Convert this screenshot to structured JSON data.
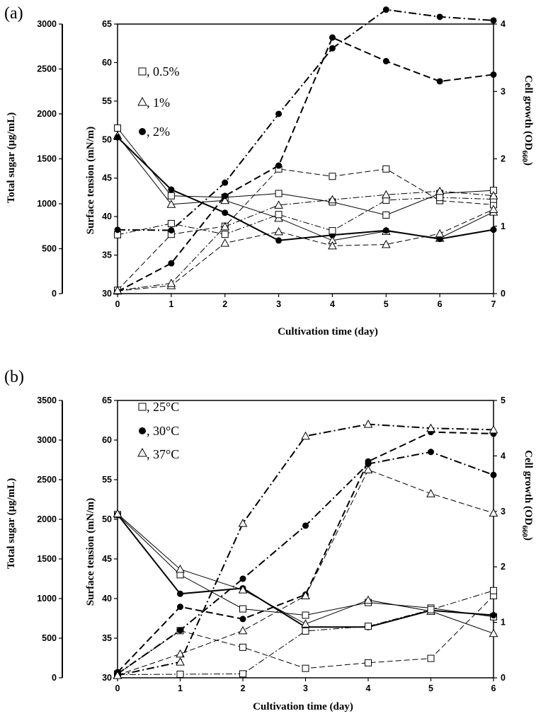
{
  "panels": [
    {
      "panel_label": "(a)",
      "xlabel": "Cultivation time (day)",
      "ylabel_left": "Total sugar (μg/mL)",
      "ylabel_mid": "Surface tension (mN/m)",
      "ylabel_right": "Cell growth (OD660)",
      "ylabel_right_main": "Cell growth (OD",
      "ylabel_right_sub": "660",
      "ylabel_right_close": ")",
      "legend": [
        {
          "marker": "square",
          "text": ", 0.5%"
        },
        {
          "marker": "triangle",
          "text": ", 1%"
        },
        {
          "marker": "circle",
          "text": ", 2%"
        }
      ]
    },
    {
      "panel_label": "(b)",
      "xlabel": "Cultivation time (day)",
      "ylabel_left": "Total sugar (μg/mL)",
      "ylabel_mid": "Surface tension (mN/m)",
      "ylabel_right": "Cell growth (OD660)",
      "ylabel_right_main": "Cell growth (OD",
      "ylabel_right_sub": "660",
      "ylabel_right_close": ")",
      "legend": [
        {
          "marker": "square",
          "text": ", 25°C"
        },
        {
          "marker": "circle",
          "text": ", 30°C"
        },
        {
          "marker": "triangle",
          "text": ", 37°C"
        }
      ]
    }
  ],
  "chart_data": [
    {
      "type": "line",
      "x": [
        0,
        1,
        2,
        3,
        4,
        5,
        6,
        7
      ],
      "xlim": [
        0,
        7
      ],
      "xticks": [
        0,
        1,
        2,
        3,
        4,
        5,
        6,
        7
      ],
      "axes": {
        "surface_tension": {
          "lim": [
            30,
            65
          ],
          "ticks": [
            30,
            35,
            40,
            45,
            50,
            55,
            60,
            65
          ]
        },
        "cell_growth": {
          "lim": [
            0,
            4
          ],
          "ticks": [
            0,
            1,
            2,
            3,
            4
          ]
        },
        "total_sugar": {
          "lim": [
            0,
            3000
          ],
          "ticks": [
            0,
            500,
            1000,
            1500,
            2000,
            2500,
            3000
          ]
        }
      },
      "series": [
        {
          "name": "0.5%",
          "marker": "square",
          "measure": "surface_tension",
          "line": "solid",
          "values": [
            51.5,
            42.7,
            42.5,
            43.0,
            41.9,
            40.2,
            43.0,
            43.4
          ]
        },
        {
          "name": "1%",
          "marker": "triangle",
          "measure": "surface_tension",
          "line": "solid",
          "values": [
            50.5,
            41.6,
            42.1,
            39.8,
            36.9,
            38.1,
            37.2,
            40.6
          ]
        },
        {
          "name": "2%",
          "marker": "circle",
          "measure": "surface_tension",
          "line": "solid-bold",
          "values": [
            50.3,
            43.5,
            40.5,
            36.9,
            37.6,
            38.2,
            37.1,
            38.3
          ]
        },
        {
          "name": "0.5%",
          "marker": "square",
          "measure": "cell_growth",
          "line": "dashed",
          "values": [
            0.05,
            0.88,
            1.0,
            1.85,
            1.74,
            1.85,
            1.38,
            1.32
          ]
        },
        {
          "name": "1%",
          "marker": "triangle",
          "measure": "cell_growth",
          "line": "dashed",
          "values": [
            0.04,
            0.12,
            0.75,
            0.92,
            0.71,
            0.73,
            0.89,
            1.25
          ]
        },
        {
          "name": "2%",
          "marker": "circle",
          "measure": "cell_growth",
          "line": "dashed-bold",
          "values": [
            0.03,
            0.45,
            1.45,
            1.9,
            3.8,
            3.45,
            3.15,
            3.25
          ]
        },
        {
          "name": "0.5%",
          "marker": "square",
          "measure": "total_sugar",
          "line": "dashdot",
          "values": [
            655,
            780,
            660,
            880,
            700,
            1040,
            1070,
            1050
          ]
        },
        {
          "name": "1%",
          "marker": "triangle",
          "measure": "total_sugar",
          "line": "dashdot",
          "values": [
            35,
            115,
            745,
            985,
            1045,
            1100,
            1140,
            1090
          ]
        },
        {
          "name": "2%",
          "marker": "circle",
          "measure": "total_sugar",
          "line": "dashdot-bold",
          "values": [
            710,
            705,
            1235,
            2000,
            2730,
            3160,
            3080,
            3040
          ]
        }
      ]
    },
    {
      "type": "line",
      "x": [
        0,
        1,
        2,
        3,
        4,
        5,
        6
      ],
      "xlim": [
        0,
        6
      ],
      "xticks": [
        0,
        1,
        2,
        3,
        4,
        5,
        6
      ],
      "axes": {
        "surface_tension": {
          "lim": [
            30,
            65
          ],
          "ticks": [
            30,
            35,
            40,
            45,
            50,
            55,
            60,
            65
          ]
        },
        "cell_growth": {
          "lim": [
            0,
            5
          ],
          "ticks": [
            0,
            1,
            2,
            3,
            4,
            5
          ]
        },
        "total_sugar": {
          "lim": [
            0,
            3500
          ],
          "ticks": [
            0,
            500,
            1000,
            1500,
            2000,
            2500,
            3000,
            3500
          ]
        }
      },
      "series": [
        {
          "name": "25°C",
          "marker": "square",
          "measure": "surface_tension",
          "line": "solid",
          "values": [
            50.6,
            43.0,
            38.7,
            37.9,
            39.5,
            38.8,
            37.7
          ]
        },
        {
          "name": "30°C",
          "marker": "circle",
          "measure": "surface_tension",
          "line": "solid-bold",
          "values": [
            50.6,
            40.6,
            41.3,
            36.4,
            36.4,
            38.5,
            37.9
          ]
        },
        {
          "name": "37°C",
          "marker": "triangle",
          "measure": "surface_tension",
          "line": "solid",
          "values": [
            50.7,
            43.7,
            41.1,
            36.8,
            39.8,
            38.4,
            35.6
          ]
        },
        {
          "name": "25°C",
          "marker": "square",
          "measure": "cell_growth",
          "line": "dashed",
          "values": [
            0.07,
            0.85,
            0.55,
            0.17,
            0.27,
            0.35,
            1.48
          ]
        },
        {
          "name": "30°C",
          "marker": "circle",
          "measure": "cell_growth",
          "line": "dashed-bold",
          "values": [
            0.1,
            1.28,
            1.06,
            1.5,
            3.9,
            4.43,
            4.4
          ]
        },
        {
          "name": "37°C",
          "marker": "triangle",
          "measure": "cell_growth",
          "line": "dashed",
          "values": [
            0.05,
            0.43,
            0.85,
            1.48,
            3.75,
            3.32,
            2.97
          ]
        },
        {
          "name": "25°C",
          "marker": "square",
          "measure": "total_sugar",
          "line": "dashdot",
          "values": [
            40,
            45,
            50,
            590,
            650,
            860,
            1100
          ]
        },
        {
          "name": "30°C",
          "marker": "circle",
          "measure": "total_sugar",
          "line": "dashdot-bold",
          "values": [
            50,
            600,
            1250,
            1920,
            2700,
            2850,
            2560
          ]
        },
        {
          "name": "37°C",
          "marker": "triangle",
          "measure": "total_sugar",
          "line": "dashdot-bold",
          "values": [
            30,
            200,
            1950,
            3050,
            3200,
            3150,
            3130
          ]
        }
      ]
    }
  ]
}
